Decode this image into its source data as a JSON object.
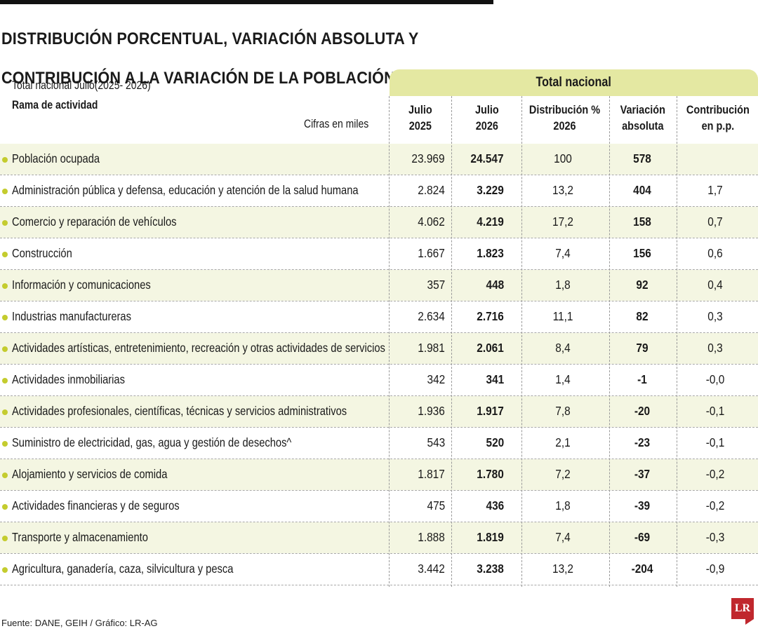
{
  "title": {
    "line1": "DISTRIBUCIÓN PORCENTUAL, VARIACIÓN ABSOLUTA Y",
    "line2": "CONTRIBUCIÓN A LA VARIACIÓN DE LA POBLACIÓN OCUPADA"
  },
  "scope_label": "Total nacional Julio(2025- 2026)",
  "branch_label": "Rama de actividad",
  "units_label": "Cifras en miles",
  "group_header": "Total nacional",
  "columns": {
    "j2025": "Julio\n2025",
    "j2026": "Julio\n2026",
    "dist": "Distribución %\n2026",
    "var": "Variación\nabsoluta",
    "contrib": "Contribución\nen p.p."
  },
  "rows": [
    {
      "label": "Población ocupada",
      "j2025": "23.969",
      "j2026": "24.547",
      "dist": "100",
      "var": "578",
      "contrib": ""
    },
    {
      "label": "Administración pública y defensa, educación y atención de la salud humana",
      "j2025": "2.824",
      "j2026": "3.229",
      "dist": "13,2",
      "var": "404",
      "contrib": "1,7"
    },
    {
      "label": "Comercio y reparación de vehículos",
      "j2025": "4.062",
      "j2026": "4.219",
      "dist": "17,2",
      "var": "158",
      "contrib": "0,7"
    },
    {
      "label": "Construcción",
      "j2025": "1.667",
      "j2026": "1.823",
      "dist": "7,4",
      "var": "156",
      "contrib": "0,6"
    },
    {
      "label": "Información y comunicaciones",
      "j2025": "357",
      "j2026": "448",
      "dist": "1,8",
      "var": "92",
      "contrib": "0,4"
    },
    {
      "label": "Industrias manufactureras",
      "j2025": "2.634",
      "j2026": "2.716",
      "dist": "11,1",
      "var": "82",
      "contrib": "0,3"
    },
    {
      "label": "Actividades artísticas, entretenimiento, recreación y otras actividades de servicios",
      "j2025": "1.981",
      "j2026": "2.061",
      "dist": "8,4",
      "var": "79",
      "contrib": "0,3"
    },
    {
      "label": "Actividades inmobiliarias",
      "j2025": "342",
      "j2026": "341",
      "dist": "1,4",
      "var": "-1",
      "contrib": "-0,0"
    },
    {
      "label": "Actividades profesionales, científicas, técnicas y servicios administrativos",
      "j2025": "1.936",
      "j2026": "1.917",
      "dist": "7,8",
      "var": "-20",
      "contrib": "-0,1"
    },
    {
      "label": "Suministro de electricidad, gas, agua y gestión de desechos^",
      "j2025": "543",
      "j2026": "520",
      "dist": "2,1",
      "var": "-23",
      "contrib": "-0,1"
    },
    {
      "label": "Alojamiento y servicios de comida",
      "j2025": "1.817",
      "j2026": "1.780",
      "dist": "7,2",
      "var": "-37",
      "contrib": "-0,2"
    },
    {
      "label": "Actividades financieras y de seguros",
      "j2025": "475",
      "j2026": "436",
      "dist": "1,8",
      "var": "-39",
      "contrib": "-0,2"
    },
    {
      "label": "Transporte y almacenamiento",
      "j2025": "1.888",
      "j2026": "1.819",
      "dist": "7,4",
      "var": "-69",
      "contrib": "-0,3"
    },
    {
      "label": "Agricultura, ganadería, caza, silvicultura y pesca",
      "j2025": "3.442",
      "j2026": "3.238",
      "dist": "13,2",
      "var": "-204",
      "contrib": "-0,9"
    }
  ],
  "source": "Fuente: DANE, GEIH / Gráfico: LR-AG",
  "logo_text": "LR",
  "colors": {
    "accent": "#c4cc2e",
    "header_bg": "#e4e8a2",
    "row_shade": "#f4f6e2",
    "logo": "#c0272d"
  }
}
